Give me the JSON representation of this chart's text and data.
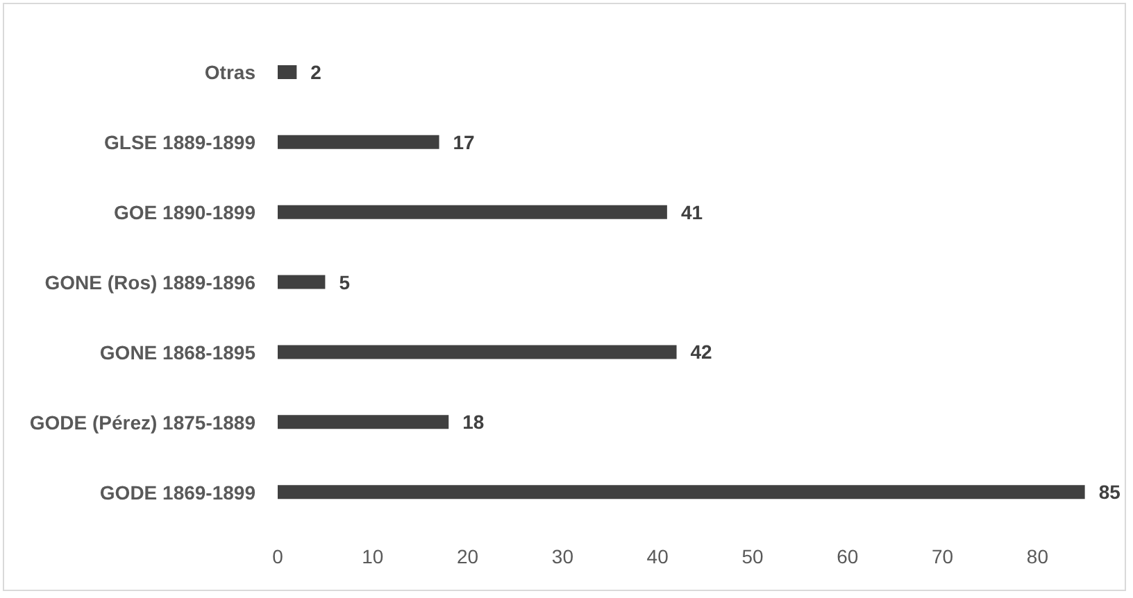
{
  "chart_data": {
    "type": "bar",
    "orientation": "horizontal",
    "categories": [
      "Otras",
      "GLSE 1889-1899",
      "GOE 1890-1899",
      "GONE (Ros) 1889-1896",
      "GONE 1868-1895",
      "GODE (Pérez) 1875-1889",
      "GODE 1869-1899"
    ],
    "values": [
      2,
      17,
      41,
      5,
      42,
      18,
      85
    ],
    "color": "#404040",
    "xlim": [
      0,
      85
    ],
    "xticks": [
      0,
      10,
      20,
      30,
      40,
      50,
      60,
      70,
      80
    ],
    "data_labels": true
  }
}
